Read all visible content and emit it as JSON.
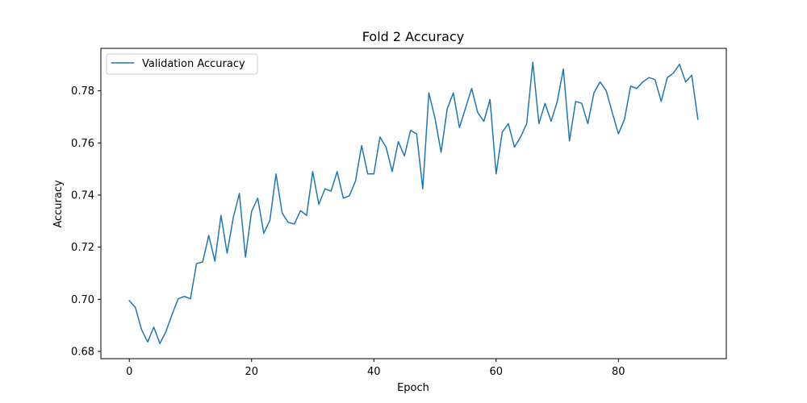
{
  "chart_data": {
    "type": "line",
    "title": "Fold 2 Accuracy",
    "xlabel": "Epoch",
    "ylabel": "Accuracy",
    "xlim": [
      -4.65,
      97.65
    ],
    "ylim": [
      0.6772,
      0.7963
    ],
    "xticks": [
      0,
      20,
      40,
      60,
      80
    ],
    "xtick_labels": [
      "0",
      "20",
      "40",
      "60",
      "80"
    ],
    "yticks": [
      0.68,
      0.7,
      0.72,
      0.74,
      0.76,
      0.78
    ],
    "ytick_labels": [
      "0.68",
      "0.70",
      "0.72",
      "0.74",
      "0.76",
      "0.78"
    ],
    "grid": false,
    "legend": {
      "position": "top-left"
    },
    "series": [
      {
        "name": "Validation Accuracy",
        "color": "#1f77b4",
        "x": [
          0,
          1,
          2,
          3,
          4,
          5,
          6,
          7,
          8,
          9,
          10,
          11,
          12,
          13,
          14,
          15,
          16,
          17,
          18,
          19,
          20,
          21,
          22,
          23,
          24,
          25,
          26,
          27,
          28,
          29,
          30,
          31,
          32,
          33,
          34,
          35,
          36,
          37,
          38,
          39,
          40,
          41,
          42,
          43,
          44,
          45,
          46,
          47,
          48,
          49,
          50,
          51,
          52,
          53,
          54,
          55,
          56,
          57,
          58,
          59,
          60,
          61,
          62,
          63,
          64,
          65,
          66,
          67,
          68,
          69,
          70,
          71,
          72,
          73,
          74,
          75,
          76,
          77,
          78,
          79,
          80,
          81,
          82,
          83,
          84,
          85,
          86,
          87,
          88,
          89,
          90,
          91,
          92,
          93
        ],
        "values": [
          0.6995,
          0.6968,
          0.6884,
          0.6836,
          0.6893,
          0.683,
          0.6876,
          0.6942,
          0.7002,
          0.7011,
          0.7002,
          0.7137,
          0.7143,
          0.7245,
          0.7146,
          0.7322,
          0.7177,
          0.7313,
          0.7406,
          0.7162,
          0.7337,
          0.7388,
          0.7253,
          0.7304,
          0.7481,
          0.7331,
          0.7295,
          0.7289,
          0.734,
          0.7322,
          0.749,
          0.7364,
          0.7424,
          0.7415,
          0.749,
          0.7388,
          0.7397,
          0.7454,
          0.759,
          0.7481,
          0.7481,
          0.7623,
          0.7584,
          0.749,
          0.7605,
          0.755,
          0.7648,
          0.7635,
          0.7424,
          0.7792,
          0.7695,
          0.7564,
          0.7731,
          0.7792,
          0.7659,
          0.7734,
          0.7809,
          0.7716,
          0.7683,
          0.7767,
          0.7481,
          0.7641,
          0.7674,
          0.7584,
          0.7623,
          0.7674,
          0.791,
          0.7674,
          0.7752,
          0.7683,
          0.7759,
          0.7884,
          0.7608,
          0.7759,
          0.7752,
          0.7674,
          0.7792,
          0.7834,
          0.7801,
          0.7716,
          0.7635,
          0.7691,
          0.7818,
          0.7809,
          0.7834,
          0.7851,
          0.7843,
          0.7759,
          0.7851,
          0.7868,
          0.7902,
          0.7834,
          0.786,
          0.7691
        ]
      }
    ]
  }
}
